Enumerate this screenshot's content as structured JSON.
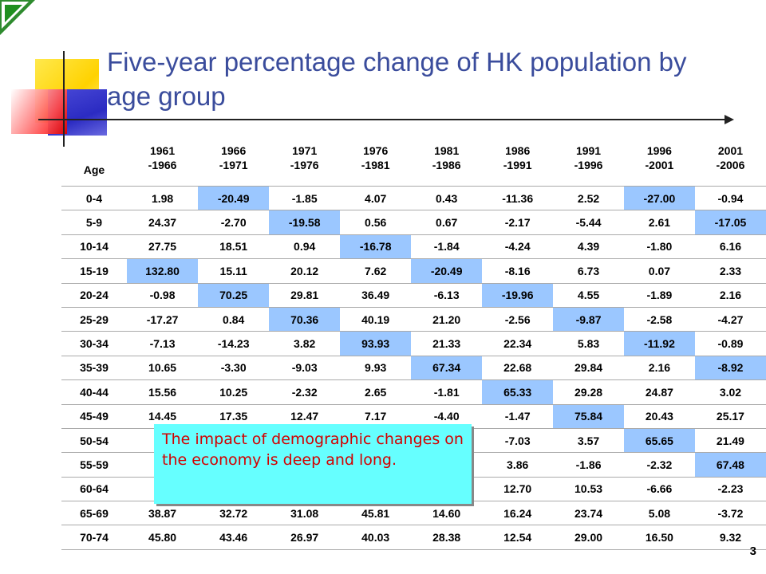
{
  "slide": {
    "title": "Five-year percentage change of HK population by age group",
    "page_number": "3"
  },
  "table": {
    "age_header": "Age",
    "periods": [
      {
        "start": "1961",
        "end": "-1966"
      },
      {
        "start": "1966",
        "end": "-1971"
      },
      {
        "start": "1971",
        "end": "-1976"
      },
      {
        "start": "1976",
        "end": "-1981"
      },
      {
        "start": "1981",
        "end": "-1986"
      },
      {
        "start": "1986",
        "end": "-1991"
      },
      {
        "start": "1991",
        "end": "-1996"
      },
      {
        "start": "1996",
        "end": "-2001"
      },
      {
        "start": "2001",
        "end": "-2006"
      }
    ],
    "highlight_color": "#9bc7ff",
    "rows": [
      {
        "age": "0-4",
        "values": [
          "1.98",
          "-20.49",
          "-1.85",
          "4.07",
          "0.43",
          "-11.36",
          "2.52",
          "-27.00",
          "-0.94"
        ],
        "highlight": [
          1,
          7
        ]
      },
      {
        "age": "5-9",
        "values": [
          "24.37",
          "-2.70",
          "-19.58",
          "0.56",
          "0.67",
          "-2.17",
          "-5.44",
          "2.61",
          "-17.05"
        ],
        "highlight": [
          2,
          8
        ]
      },
      {
        "age": "10-14",
        "values": [
          "27.75",
          "18.51",
          "0.94",
          "-16.78",
          "-1.84",
          "-4.24",
          "4.39",
          "-1.80",
          "6.16"
        ],
        "highlight": [
          3
        ]
      },
      {
        "age": "15-19",
        "values": [
          "132.80",
          "15.11",
          "20.12",
          "7.62",
          "-20.49",
          "-8.16",
          "6.73",
          "0.07",
          "2.33"
        ],
        "highlight": [
          0,
          4
        ]
      },
      {
        "age": "20-24",
        "values": [
          "-0.98",
          "70.25",
          "29.81",
          "36.49",
          "-6.13",
          "-19.96",
          "4.55",
          "-1.89",
          "2.16"
        ],
        "highlight": [
          1,
          5
        ]
      },
      {
        "age": "25-29",
        "values": [
          "-17.27",
          "0.84",
          "70.36",
          "40.19",
          "21.20",
          "-2.56",
          "-9.87",
          "-2.58",
          "-4.27"
        ],
        "highlight": [
          2,
          6
        ]
      },
      {
        "age": "30-34",
        "values": [
          "-7.13",
          "-14.23",
          "3.82",
          "93.93",
          "21.33",
          "22.34",
          "5.83",
          "-11.92",
          "-0.89"
        ],
        "highlight": [
          3,
          7
        ]
      },
      {
        "age": "35-39",
        "values": [
          "10.65",
          "-3.30",
          "-9.03",
          "9.93",
          "67.34",
          "22.68",
          "29.84",
          "2.16",
          "-8.92"
        ],
        "highlight": [
          4,
          8
        ]
      },
      {
        "age": "40-44",
        "values": [
          "15.56",
          "10.25",
          "-2.32",
          "2.65",
          "-1.81",
          "65.33",
          "29.28",
          "24.87",
          "3.02"
        ],
        "highlight": [
          5
        ]
      },
      {
        "age": "45-49",
        "values": [
          "14.45",
          "17.35",
          "12.47",
          "7.17",
          "-4.40",
          "-1.47",
          "75.84",
          "20.43",
          "25.17"
        ],
        "highlight": [
          6
        ]
      },
      {
        "age": "50-54",
        "values": [
          "",
          "",
          "",
          "",
          "",
          "-7.03",
          "3.57",
          "65.65",
          "21.49"
        ],
        "highlight": [
          7
        ]
      },
      {
        "age": "55-59",
        "values": [
          "",
          "",
          "",
          "",
          "",
          "3.86",
          "-1.86",
          "-2.32",
          "67.48"
        ],
        "highlight": [
          8
        ]
      },
      {
        "age": "60-64",
        "values": [
          "",
          "",
          "",
          "",
          "",
          "12.70",
          "10.53",
          "-6.66",
          "-2.23"
        ],
        "highlight": []
      },
      {
        "age": "65-69",
        "values": [
          "38.87",
          "32.72",
          "31.08",
          "45.81",
          "14.60",
          "16.24",
          "23.74",
          "5.08",
          "-3.72"
        ],
        "highlight": []
      },
      {
        "age": "70-74",
        "values": [
          "45.80",
          "43.46",
          "26.97",
          "40.03",
          "28.38",
          "12.54",
          "29.00",
          "16.50",
          "9.32"
        ],
        "highlight": []
      }
    ]
  },
  "callout": {
    "text": "The impact of demographic changes on the economy is deep and long.",
    "background": "#66ffff",
    "text_color": "#d40000"
  }
}
